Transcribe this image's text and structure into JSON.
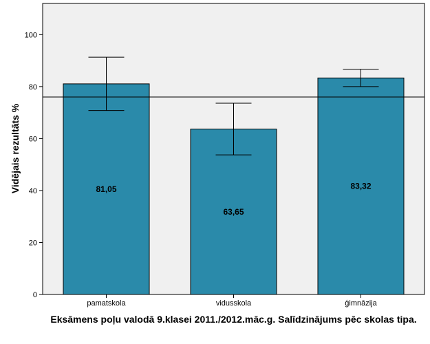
{
  "chart_data": {
    "type": "bar",
    "categories": [
      "pamatskola",
      "vidusskola",
      "ģimnāzija"
    ],
    "values": [
      81.05,
      63.65,
      83.32
    ],
    "value_labels": [
      "81,05",
      "63,65",
      "83,32"
    ],
    "error_bars": [
      {
        "low": 70.8,
        "high": 91.3
      },
      {
        "low": 53.7,
        "high": 73.6
      },
      {
        "low": 80.0,
        "high": 86.7
      }
    ],
    "reference_line": 76.0,
    "xlabel": "Eksāmens poļu valodā 9.klasei 2011./2012.māc.g. Salīdzinājums pēc skolas tipa.",
    "ylabel": "Vidējais rezultāts %",
    "ylim": [
      0,
      112
    ],
    "yticks": [
      0,
      20,
      40,
      60,
      80,
      100
    ],
    "grid": false,
    "legend": "none",
    "colors": {
      "bar": "#2a8aaa",
      "plot_background": "#f0f0f0",
      "axis": "#000000"
    }
  }
}
